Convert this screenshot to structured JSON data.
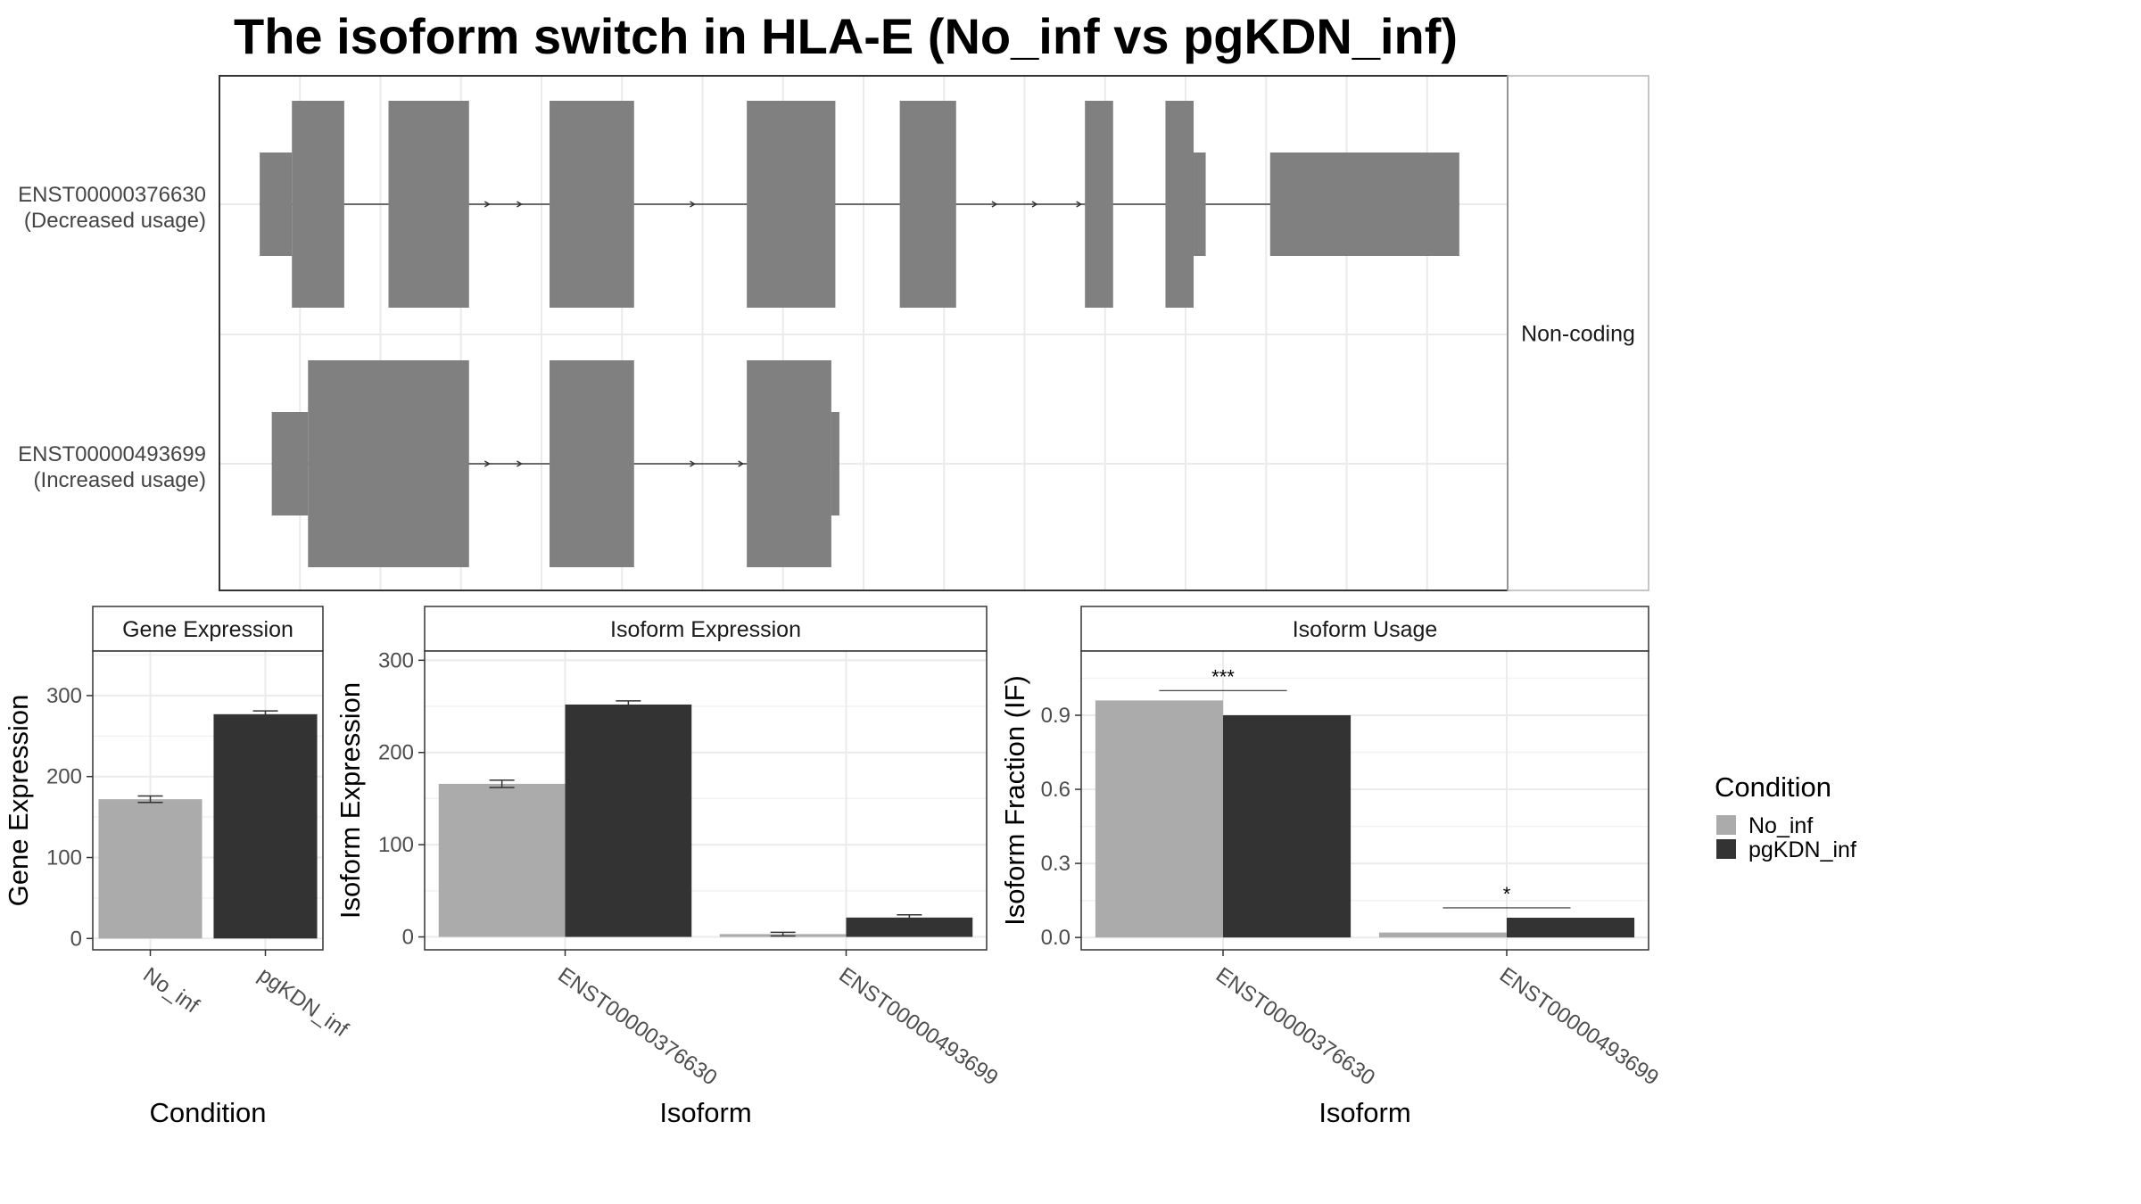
{
  "title": "The isoform switch in HLA-E (No_inf vs pgKDN_inf)",
  "colors": {
    "No_inf": "#ababab",
    "pgKDN_inf": "#333333",
    "exon": "#808080",
    "grid": "#ebebeb",
    "panel_border": "#333333"
  },
  "chart_data": [
    {
      "type": "other",
      "panel": "isoform-structure",
      "strip_label": "Non-coding",
      "transcripts": [
        {
          "id": "ENST00000376630",
          "usage": "(Decreased usage)",
          "exons": [
            {
              "start": 1.0,
              "end": 1.8,
              "thick": false
            },
            {
              "start": 1.8,
              "end": 3.1,
              "thick": true
            },
            {
              "start": 4.2,
              "end": 6.2,
              "thick": true
            },
            {
              "start": 8.2,
              "end": 10.3,
              "thick": true
            },
            {
              "start": 13.1,
              "end": 15.3,
              "thick": true
            },
            {
              "start": 16.9,
              "end": 18.3,
              "thick": true
            },
            {
              "start": 21.5,
              "end": 22.2,
              "thick": true
            },
            {
              "start": 23.5,
              "end": 24.2,
              "thick": true
            },
            {
              "start": 24.2,
              "end": 24.5,
              "thick": false
            },
            {
              "start": 26.1,
              "end": 30.8,
              "thick": false
            }
          ],
          "arrows": [
            6.7,
            7.5,
            11.8,
            19.3,
            20.3,
            21.4
          ]
        },
        {
          "id": "ENST00000493699",
          "usage": "(Increased usage)",
          "exons": [
            {
              "start": 1.3,
              "end": 2.2,
              "thick": false
            },
            {
              "start": 2.2,
              "end": 6.2,
              "thick": true
            },
            {
              "start": 8.2,
              "end": 10.3,
              "thick": true
            },
            {
              "start": 13.1,
              "end": 15.2,
              "thick": true
            },
            {
              "start": 15.2,
              "end": 15.4,
              "thick": false
            }
          ],
          "arrows": [
            6.7,
            7.5,
            11.8,
            13.0
          ]
        }
      ],
      "xlim": [
        0,
        32
      ]
    },
    {
      "type": "bar",
      "panel": "gene-expression",
      "strip_label": "Gene Expression",
      "xlabel": "Condition",
      "ylabel": "Gene Expression",
      "categories": [
        "No_inf",
        "pgKDN_inf"
      ],
      "values": [
        172,
        277
      ],
      "errors": [
        4,
        4
      ],
      "ylim": [
        -14,
        355
      ],
      "yticks": [
        0,
        100,
        200,
        300
      ],
      "grid": true
    },
    {
      "type": "bar",
      "panel": "isoform-expression",
      "strip_label": "Isoform Expression",
      "xlabel": "Isoform",
      "ylabel": "Isoform Expression",
      "categories": [
        "ENST00000376630",
        "ENST00000493699"
      ],
      "series": [
        {
          "name": "No_inf",
          "values": [
            166,
            3
          ],
          "errors": [
            4,
            2
          ]
        },
        {
          "name": "pgKDN_inf",
          "values": [
            252,
            21
          ],
          "errors": [
            4,
            3
          ]
        }
      ],
      "ylim": [
        -14,
        310
      ],
      "yticks": [
        0,
        100,
        200,
        300
      ],
      "grid": true
    },
    {
      "type": "bar",
      "panel": "isoform-usage",
      "strip_label": "Isoform Usage",
      "xlabel": "Isoform",
      "ylabel": "Isoform Fraction (IF)",
      "categories": [
        "ENST00000376630",
        "ENST00000493699"
      ],
      "series": [
        {
          "name": "No_inf",
          "values": [
            0.96,
            0.02
          ]
        },
        {
          "name": "pgKDN_inf",
          "values": [
            0.9,
            0.08
          ]
        }
      ],
      "significance": [
        "***",
        "*"
      ],
      "ylim": [
        -0.05,
        1.16
      ],
      "yticks": [
        0.0,
        0.3,
        0.6,
        0.9
      ],
      "ytick_labels": [
        "0.0",
        "0.3",
        "0.6",
        "0.9"
      ],
      "grid": true
    }
  ],
  "legend": {
    "title": "Condition",
    "items": [
      {
        "label": "No_inf",
        "color": "#ababab"
      },
      {
        "label": "pgKDN_inf",
        "color": "#333333"
      }
    ]
  }
}
